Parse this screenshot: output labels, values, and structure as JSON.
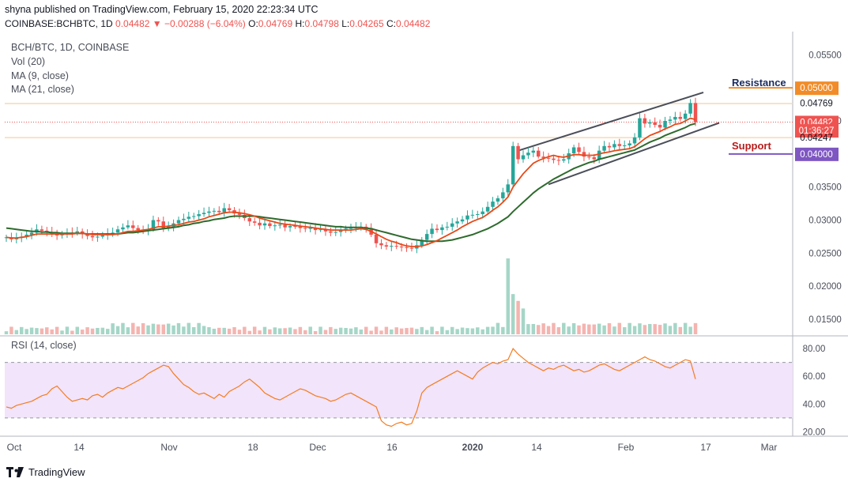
{
  "header": {
    "published": "shyna published on TradingView.com, February 15, 2020 22:23:34 UTC",
    "symbol": "COINBASE:BCHBTC, 1D",
    "last": "0.04482",
    "change": "−0.00288 (−6.04%)",
    "ohlc": {
      "O": "0.04769",
      "H": "0.04798",
      "L": "0.04265",
      "C": "0.04482"
    }
  },
  "legend": {
    "title": "BCH/BTC, 1D, COINBASE",
    "vol": "Vol (20)",
    "ma9": "MA (9, close)",
    "ma21": "MA (21, close)",
    "rsi": "RSI (14, close)"
  },
  "annotations": {
    "resistance": "Resistance",
    "support": "Support"
  },
  "footer": {
    "brand": "TradingView"
  },
  "colors": {
    "up": "#26a69a",
    "down": "#ef5350",
    "ma9": "#e64a19",
    "ma21": "#2e6b2e",
    "resistance": "#f28c28",
    "support": "#7e57c2",
    "rsi": "#f57c20"
  },
  "chart_data": [
    {
      "type": "candlestick",
      "title": "BCH/BTC, 1D, COINBASE",
      "ylim": [
        0.0125,
        0.0585
      ],
      "y_ticks": [
        "0.05500",
        "0.04500",
        "0.03500",
        "0.03000",
        "0.02500",
        "0.02000",
        "0.01500"
      ],
      "x_ticks": [
        "Oct",
        "14",
        "Nov",
        "18",
        "Dec",
        "16",
        "2020",
        "14",
        "Feb",
        "17",
        "Mar"
      ],
      "price_labels": [
        {
          "text": "0.05000",
          "value": 0.05,
          "color": "#f28c28"
        },
        {
          "text": "0.04769",
          "value": 0.04769,
          "color": "none"
        },
        {
          "text": "0.04482",
          "value": 0.04482,
          "color": "#ef5350"
        },
        {
          "text": "01:36:27",
          "value": 0.04355,
          "color": "#ef5350"
        },
        {
          "text": "0.04247",
          "value": 0.04247,
          "color": "none"
        },
        {
          "text": "0.04000",
          "value": 0.04,
          "color": "#7e57c2"
        }
      ],
      "candle_count": 137,
      "close": [
        0.0274,
        0.0271,
        0.0273,
        0.0275,
        0.0278,
        0.0281,
        0.0286,
        0.0284,
        0.0282,
        0.0278,
        0.0277,
        0.0279,
        0.0281,
        0.028,
        0.0283,
        0.0279,
        0.0276,
        0.0274,
        0.0275,
        0.0277,
        0.028,
        0.0281,
        0.0286,
        0.0289,
        0.0292,
        0.0288,
        0.0285,
        0.0284,
        0.0286,
        0.03,
        0.0298,
        0.0288,
        0.029,
        0.0295,
        0.03,
        0.0302,
        0.0305,
        0.0306,
        0.0309,
        0.0311,
        0.0313,
        0.0314,
        0.0312,
        0.0318,
        0.0315,
        0.031,
        0.0308,
        0.0303,
        0.0298,
        0.0296,
        0.0292,
        0.0295,
        0.0291,
        0.0292,
        0.0293,
        0.0289,
        0.0291,
        0.029,
        0.0288,
        0.0287,
        0.0288,
        0.0285,
        0.0286,
        0.0283,
        0.0281,
        0.0282,
        0.0284,
        0.0287,
        0.0288,
        0.0289,
        0.029,
        0.0288,
        0.0278,
        0.0265,
        0.0262,
        0.026,
        0.0261,
        0.026,
        0.0259,
        0.0258,
        0.0257,
        0.0262,
        0.027,
        0.0279,
        0.0287,
        0.0285,
        0.0289,
        0.029,
        0.0295,
        0.0298,
        0.0301,
        0.0307,
        0.0308,
        0.0309,
        0.0313,
        0.032,
        0.0328,
        0.0333,
        0.0342,
        0.0354,
        0.0412,
        0.0392,
        0.0398,
        0.0402,
        0.0405,
        0.0396,
        0.0394,
        0.0393,
        0.0391,
        0.039,
        0.0392,
        0.0401,
        0.041,
        0.0403,
        0.0396,
        0.0395,
        0.0392,
        0.0405,
        0.0412,
        0.041,
        0.0415,
        0.0412,
        0.0413,
        0.0416,
        0.0425,
        0.0454,
        0.0446,
        0.0448,
        0.0444,
        0.044,
        0.045,
        0.0452,
        0.0456,
        0.0453,
        0.0461,
        0.0477,
        0.0448
      ],
      "ma9": [
        0.0274,
        0.0273,
        0.0273,
        0.0274,
        0.0275,
        0.0277,
        0.0279,
        0.0279,
        0.0279,
        0.0279,
        0.0279,
        0.0279,
        0.0279,
        0.0279,
        0.028,
        0.028,
        0.0279,
        0.0278,
        0.0278,
        0.0278,
        0.0278,
        0.0278,
        0.0279,
        0.0281,
        0.0283,
        0.0283,
        0.0284,
        0.0285,
        0.0286,
        0.0288,
        0.029,
        0.029,
        0.0291,
        0.0292,
        0.0293,
        0.0295,
        0.0297,
        0.0298,
        0.03,
        0.0302,
        0.0305,
        0.0307,
        0.0309,
        0.0311,
        0.0312,
        0.0312,
        0.0311,
        0.031,
        0.0308,
        0.0306,
        0.0303,
        0.0301,
        0.0299,
        0.0297,
        0.0295,
        0.0294,
        0.0293,
        0.0292,
        0.0291,
        0.029,
        0.0289,
        0.0288,
        0.0287,
        0.0286,
        0.0285,
        0.0285,
        0.0285,
        0.0285,
        0.0285,
        0.0286,
        0.0287,
        0.0286,
        0.0283,
        0.0279,
        0.0275,
        0.0271,
        0.0268,
        0.0266,
        0.0263,
        0.0261,
        0.026,
        0.026,
        0.0261,
        0.0263,
        0.0266,
        0.0269,
        0.0273,
        0.0277,
        0.0281,
        0.0285,
        0.029,
        0.0294,
        0.0298,
        0.0301,
        0.0304,
        0.0309,
        0.0315,
        0.032,
        0.0327,
        0.0335,
        0.035,
        0.036,
        0.037,
        0.0378,
        0.0386,
        0.039,
        0.0393,
        0.0396,
        0.0398,
        0.0396,
        0.0395,
        0.0397,
        0.0399,
        0.0399,
        0.0398,
        0.0398,
        0.0398,
        0.04,
        0.0402,
        0.0403,
        0.0405,
        0.0406,
        0.0407,
        0.0408,
        0.0411,
        0.0417,
        0.0423,
        0.0428,
        0.0431,
        0.0434,
        0.0438,
        0.0441,
        0.0445,
        0.0446,
        0.045,
        0.0454,
        0.0452
      ],
      "ma21": [
        0.0288,
        0.0287,
        0.0286,
        0.0285,
        0.0284,
        0.0283,
        0.0283,
        0.0282,
        0.0282,
        0.0281,
        0.0281,
        0.028,
        0.028,
        0.028,
        0.028,
        0.028,
        0.0279,
        0.0279,
        0.0279,
        0.0279,
        0.0279,
        0.0279,
        0.0279,
        0.028,
        0.0281,
        0.0281,
        0.0282,
        0.0283,
        0.0284,
        0.0285,
        0.0286,
        0.0287,
        0.0288,
        0.0289,
        0.029,
        0.0292,
        0.0293,
        0.0295,
        0.0296,
        0.0298,
        0.0299,
        0.0301,
        0.0302,
        0.0303,
        0.0305,
        0.0306,
        0.0306,
        0.0306,
        0.0306,
        0.0306,
        0.0305,
        0.0304,
        0.0303,
        0.0302,
        0.0301,
        0.03,
        0.0299,
        0.0298,
        0.0297,
        0.0296,
        0.0295,
        0.0294,
        0.0293,
        0.0292,
        0.0291,
        0.029,
        0.029,
        0.0289,
        0.0289,
        0.0289,
        0.0289,
        0.0288,
        0.0287,
        0.0285,
        0.0283,
        0.0281,
        0.0279,
        0.0277,
        0.0275,
        0.0273,
        0.0271,
        0.027,
        0.0269,
        0.0268,
        0.0268,
        0.0268,
        0.0268,
        0.0269,
        0.027,
        0.0272,
        0.0274,
        0.0276,
        0.0278,
        0.0281,
        0.0284,
        0.0287,
        0.0291,
        0.0295,
        0.03,
        0.0305,
        0.0313,
        0.032,
        0.0327,
        0.0334,
        0.0341,
        0.0347,
        0.0352,
        0.0357,
        0.0362,
        0.0366,
        0.037,
        0.0374,
        0.0378,
        0.0381,
        0.0384,
        0.0387,
        0.0389,
        0.0392,
        0.0394,
        0.0396,
        0.0398,
        0.04,
        0.0402,
        0.0404,
        0.0406,
        0.041,
        0.0414,
        0.0418,
        0.0421,
        0.0424,
        0.0428,
        0.0431,
        0.0434,
        0.0437,
        0.044,
        0.0444,
        0.0446
      ]
    },
    {
      "type": "bar",
      "title": "Vol (20)",
      "candle_count": 137,
      "spike_indices": [
        99,
        100,
        101,
        102
      ],
      "spike_values": [
        1.0,
        0.53,
        0.44,
        0.34
      ]
    },
    {
      "type": "line",
      "title": "RSI (14, close)",
      "ylim": [
        18,
        88
      ],
      "y_ticks": [
        "80.00",
        "60.00",
        "40.00",
        "20.00"
      ],
      "band": [
        30,
        70
      ],
      "values": [
        38,
        37,
        39,
        40,
        41,
        42,
        44,
        46,
        47,
        51,
        53,
        49,
        45,
        42,
        43,
        44,
        43,
        46,
        47,
        45,
        48,
        50,
        52,
        51,
        53,
        55,
        57,
        59,
        62,
        64,
        66,
        68,
        67,
        62,
        58,
        54,
        52,
        49,
        47,
        48,
        46,
        44,
        47,
        45,
        49,
        51,
        53,
        56,
        58,
        55,
        52,
        48,
        46,
        44,
        43,
        45,
        47,
        49,
        51,
        50,
        48,
        46,
        45,
        44,
        42,
        43,
        45,
        47,
        48,
        46,
        44,
        42,
        40,
        38,
        28,
        25,
        24,
        26,
        27,
        25,
        26,
        35,
        48,
        52,
        54,
        56,
        58,
        60,
        62,
        64,
        62,
        60,
        58,
        63,
        66,
        68,
        70,
        69,
        71,
        72,
        80,
        76,
        73,
        70,
        68,
        66,
        64,
        66,
        65,
        67,
        68,
        66,
        64,
        65,
        63,
        64,
        66,
        68,
        69,
        67,
        65,
        64,
        66,
        68,
        70,
        72,
        74,
        72,
        71,
        69,
        67,
        66,
        68,
        70,
        72,
        71,
        58
      ]
    }
  ]
}
